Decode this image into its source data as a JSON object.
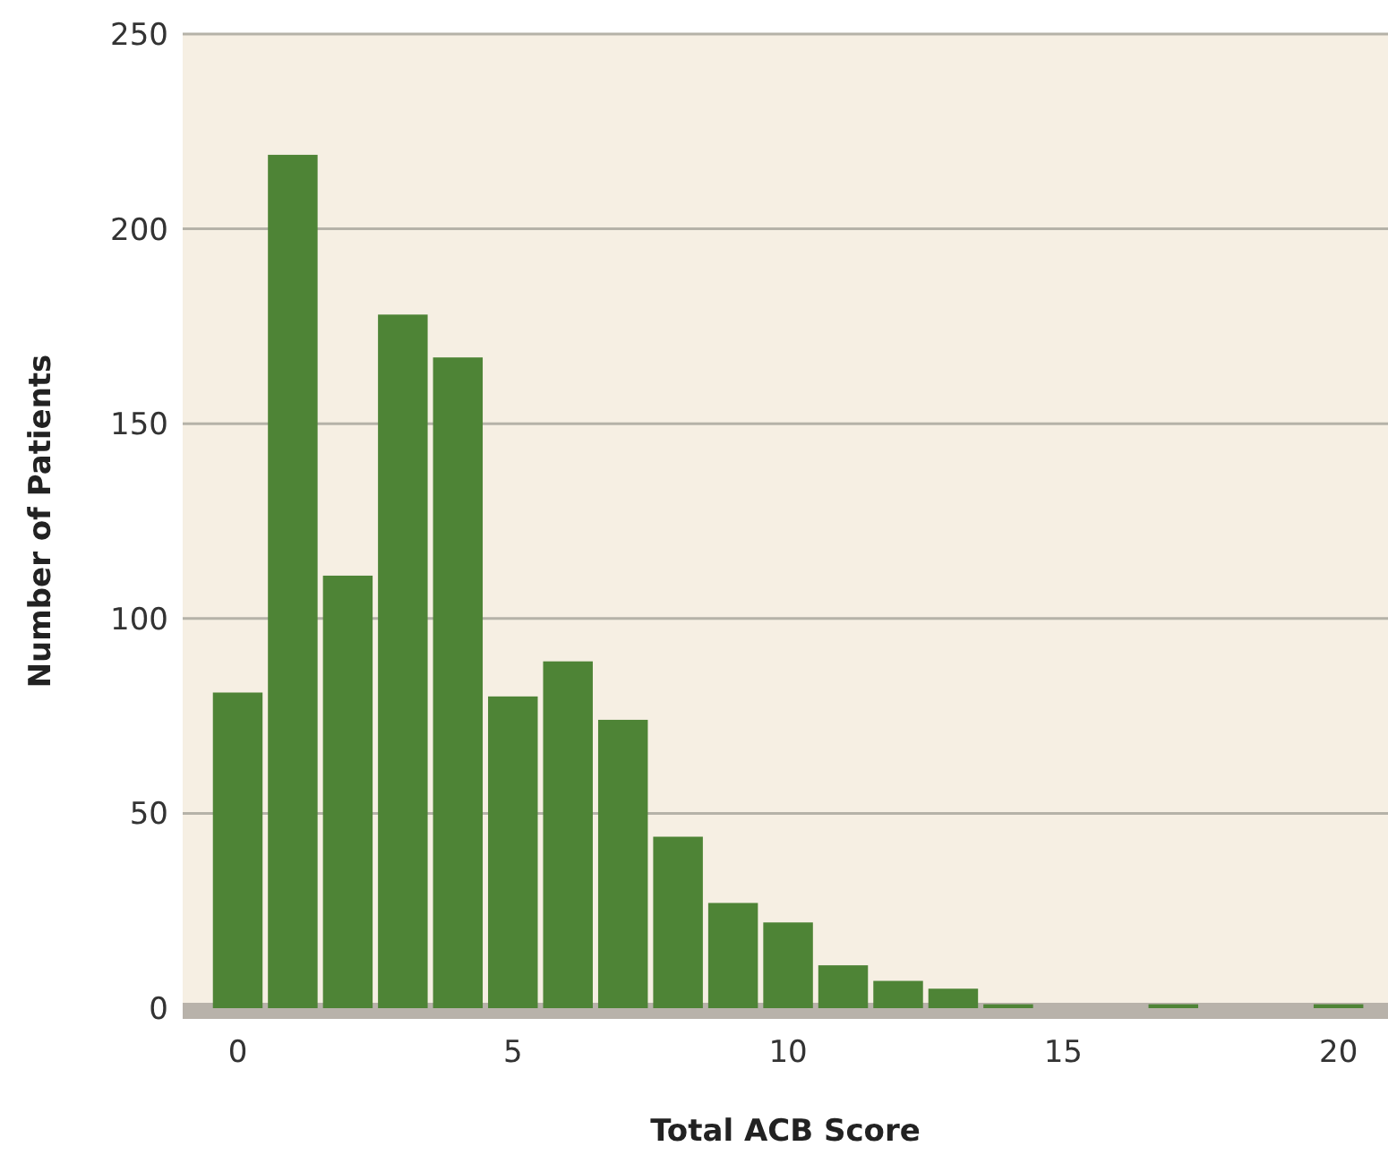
{
  "chart_data": {
    "type": "histogram",
    "xlabel": "Total ACB Score",
    "ylabel": "Number of Patients",
    "bins": [
      -0.5,
      0.5,
      1.5,
      2.5,
      3.5,
      4.5,
      5.5,
      6.5,
      7.5,
      8.5,
      9.5,
      10.5,
      11.5,
      12.5,
      13.5,
      14.5,
      15.5,
      16.5,
      17.5,
      18.5,
      19.5,
      20.5
    ],
    "values": [
      81,
      219,
      111,
      178,
      167,
      80,
      89,
      74,
      44,
      27,
      22,
      11,
      7,
      5,
      1,
      0,
      0,
      1,
      0,
      0,
      1
    ],
    "color": "#4e8436",
    "xlim": [
      -1,
      20.9
    ],
    "xticks": [
      0,
      5,
      10,
      15,
      20
    ],
    "ylim": [
      0,
      250
    ],
    "yticks": [
      0,
      50,
      100,
      150,
      200,
      250
    ],
    "grid": "y"
  }
}
